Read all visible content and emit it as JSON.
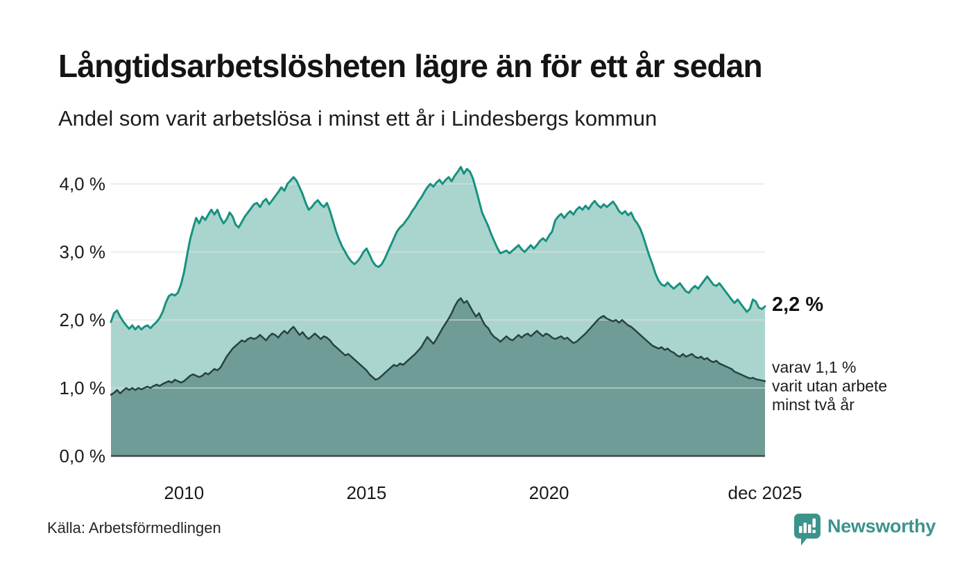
{
  "chart_data": {
    "type": "area",
    "title": "Långtidsarbetslösheten lägre än för ett år sedan",
    "subtitle": "Andel som varit arbetslösa i minst ett år i Lindesbergs kommun",
    "x_unit": "month",
    "x_range": [
      "2008-01",
      "2025-12"
    ],
    "ylim": [
      0,
      4.4
    ],
    "grid": true,
    "y_ticks": [
      {
        "value": 0.0,
        "label": "0,0 %"
      },
      {
        "value": 1.0,
        "label": "1,0 %"
      },
      {
        "value": 2.0,
        "label": "2,0 %"
      },
      {
        "value": 3.0,
        "label": "3,0 %"
      },
      {
        "value": 4.0,
        "label": "4,0 %"
      }
    ],
    "x_ticks": [
      {
        "month_index": 24,
        "label": "2010"
      },
      {
        "month_index": 84,
        "label": "2015"
      },
      {
        "month_index": 144,
        "label": "2020"
      },
      {
        "month_index": 215,
        "label": "dec 2025"
      }
    ],
    "series": [
      {
        "name": "Arbetslösa minst ett år",
        "line_color": "#18917f",
        "fill_color": "#a9d5ce",
        "line_width": 3,
        "values": [
          1.97,
          2.1,
          2.14,
          2.05,
          1.98,
          1.92,
          1.87,
          1.92,
          1.86,
          1.91,
          1.86,
          1.9,
          1.92,
          1.88,
          1.93,
          1.97,
          2.03,
          2.12,
          2.25,
          2.35,
          2.38,
          2.36,
          2.4,
          2.52,
          2.7,
          2.95,
          3.18,
          3.35,
          3.5,
          3.42,
          3.52,
          3.47,
          3.55,
          3.62,
          3.55,
          3.62,
          3.5,
          3.42,
          3.48,
          3.58,
          3.52,
          3.4,
          3.36,
          3.44,
          3.52,
          3.58,
          3.64,
          3.7,
          3.72,
          3.66,
          3.74,
          3.78,
          3.7,
          3.76,
          3.82,
          3.88,
          3.95,
          3.9,
          4.0,
          4.05,
          4.1,
          4.05,
          3.95,
          3.85,
          3.72,
          3.62,
          3.66,
          3.72,
          3.76,
          3.7,
          3.66,
          3.72,
          3.6,
          3.45,
          3.3,
          3.18,
          3.08,
          3.0,
          2.92,
          2.86,
          2.82,
          2.86,
          2.92,
          3.0,
          3.05,
          2.96,
          2.86,
          2.8,
          2.78,
          2.82,
          2.9,
          3.0,
          3.1,
          3.2,
          3.3,
          3.36,
          3.4,
          3.46,
          3.52,
          3.6,
          3.66,
          3.74,
          3.8,
          3.88,
          3.95,
          4.0,
          3.96,
          4.02,
          4.06,
          4.0,
          4.06,
          4.1,
          4.04,
          4.12,
          4.18,
          4.25,
          4.15,
          4.22,
          4.18,
          4.08,
          3.92,
          3.75,
          3.58,
          3.48,
          3.38,
          3.26,
          3.16,
          3.06,
          2.98,
          3.0,
          3.02,
          2.98,
          3.02,
          3.06,
          3.1,
          3.04,
          3.0,
          3.05,
          3.1,
          3.05,
          3.1,
          3.16,
          3.2,
          3.16,
          3.24,
          3.3,
          3.46,
          3.52,
          3.56,
          3.5,
          3.56,
          3.6,
          3.55,
          3.62,
          3.66,
          3.62,
          3.68,
          3.63,
          3.7,
          3.75,
          3.69,
          3.65,
          3.7,
          3.66,
          3.7,
          3.74,
          3.68,
          3.6,
          3.56,
          3.6,
          3.54,
          3.58,
          3.48,
          3.42,
          3.34,
          3.22,
          3.08,
          2.94,
          2.82,
          2.68,
          2.58,
          2.52,
          2.5,
          2.55,
          2.5,
          2.46,
          2.5,
          2.54,
          2.48,
          2.42,
          2.4,
          2.46,
          2.5,
          2.46,
          2.52,
          2.58,
          2.64,
          2.58,
          2.52,
          2.5,
          2.54,
          2.48,
          2.42,
          2.36,
          2.3,
          2.25,
          2.3,
          2.24,
          2.18,
          2.12,
          2.16,
          2.3,
          2.27,
          2.18,
          2.16,
          2.2
        ]
      },
      {
        "name": "Arbetslösa minst två år",
        "line_color": "#27433f",
        "fill_color": "#6f9c96",
        "line_width": 2.5,
        "values": [
          0.9,
          0.93,
          0.97,
          0.92,
          0.96,
          1.0,
          0.97,
          1.0,
          0.97,
          1.0,
          0.98,
          1.0,
          1.02,
          1.0,
          1.03,
          1.05,
          1.03,
          1.06,
          1.08,
          1.1,
          1.08,
          1.12,
          1.1,
          1.08,
          1.1,
          1.14,
          1.18,
          1.2,
          1.18,
          1.16,
          1.18,
          1.22,
          1.2,
          1.24,
          1.28,
          1.26,
          1.3,
          1.38,
          1.46,
          1.52,
          1.58,
          1.62,
          1.66,
          1.7,
          1.68,
          1.72,
          1.74,
          1.72,
          1.74,
          1.78,
          1.74,
          1.7,
          1.76,
          1.8,
          1.78,
          1.74,
          1.8,
          1.84,
          1.8,
          1.86,
          1.9,
          1.84,
          1.78,
          1.82,
          1.76,
          1.72,
          1.76,
          1.8,
          1.76,
          1.72,
          1.76,
          1.74,
          1.7,
          1.64,
          1.6,
          1.56,
          1.52,
          1.48,
          1.5,
          1.46,
          1.42,
          1.38,
          1.34,
          1.3,
          1.26,
          1.2,
          1.16,
          1.12,
          1.14,
          1.18,
          1.22,
          1.26,
          1.3,
          1.34,
          1.32,
          1.36,
          1.34,
          1.38,
          1.42,
          1.46,
          1.5,
          1.55,
          1.6,
          1.68,
          1.75,
          1.7,
          1.65,
          1.72,
          1.8,
          1.88,
          1.95,
          2.02,
          2.1,
          2.2,
          2.28,
          2.32,
          2.25,
          2.28,
          2.2,
          2.12,
          2.05,
          2.1,
          2.0,
          1.92,
          1.88,
          1.8,
          1.75,
          1.72,
          1.68,
          1.72,
          1.76,
          1.72,
          1.7,
          1.74,
          1.78,
          1.74,
          1.78,
          1.8,
          1.76,
          1.8,
          1.84,
          1.8,
          1.76,
          1.8,
          1.78,
          1.74,
          1.72,
          1.74,
          1.76,
          1.72,
          1.74,
          1.7,
          1.66,
          1.68,
          1.72,
          1.76,
          1.8,
          1.85,
          1.9,
          1.95,
          2.0,
          2.04,
          2.06,
          2.02,
          2.0,
          1.98,
          2.0,
          1.96,
          2.0,
          1.96,
          1.92,
          1.9,
          1.86,
          1.82,
          1.78,
          1.74,
          1.7,
          1.66,
          1.62,
          1.6,
          1.58,
          1.6,
          1.56,
          1.58,
          1.54,
          1.52,
          1.48,
          1.46,
          1.5,
          1.46,
          1.48,
          1.5,
          1.46,
          1.44,
          1.46,
          1.42,
          1.44,
          1.4,
          1.38,
          1.4,
          1.36,
          1.34,
          1.32,
          1.3,
          1.28,
          1.24,
          1.22,
          1.2,
          1.18,
          1.16,
          1.14,
          1.15,
          1.13,
          1.12,
          1.11,
          1.1
        ]
      }
    ],
    "annotations": {
      "latest_total": "2,2 %",
      "latest_two_year_lines": [
        "varav 1,1 %",
        "varit utan arbete",
        "minst två år"
      ]
    }
  },
  "footer": {
    "source": "Källa: Arbetsförmedlingen",
    "brand": "Newsworthy"
  },
  "colors": {
    "accent_teal": "#18917f",
    "brand_teal": "#3b948c",
    "grid": "#e0e0e0",
    "axis": "#3d4b48",
    "text": "#1a1a1a"
  }
}
